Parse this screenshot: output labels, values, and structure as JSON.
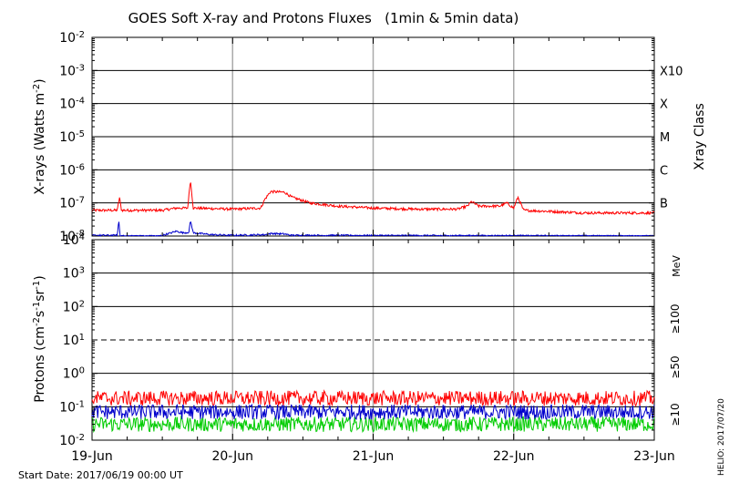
{
  "chart_data": [
    {
      "type": "line",
      "title": "GOES Soft X-ray and Protons Fluxes   (1min & 5min data)",
      "ylabel_main": "X-rays (Watts m",
      "ylabel_sup": "-2",
      "ylabel_close": ")",
      "yscale": "log",
      "ylim": [
        1e-08,
        0.01
      ],
      "y_ticks": [
        {
          "base": "10",
          "exp": "-8"
        },
        {
          "base": "10",
          "exp": "-7"
        },
        {
          "base": "10",
          "exp": "-6"
        },
        {
          "base": "10",
          "exp": "-5"
        },
        {
          "base": "10",
          "exp": "-4"
        },
        {
          "base": "10",
          "exp": "-3"
        },
        {
          "base": "10",
          "exp": "-2"
        }
      ],
      "right_axis_label": "Xray Class",
      "class_labels": [
        {
          "label": "B",
          "value": 1e-07
        },
        {
          "label": "C",
          "value": 1e-06
        },
        {
          "label": "M",
          "value": 1e-05
        },
        {
          "label": "X",
          "value": 0.0001
        },
        {
          "label": "X10",
          "value": 0.001
        }
      ],
      "series": [
        {
          "color": "#ff0000",
          "points": [
            [
              0,
              6e-08
            ],
            [
              0.18,
              6e-08
            ],
            [
              0.195,
              1.5e-07
            ],
            [
              0.21,
              6e-08
            ],
            [
              0.5,
              6e-08
            ],
            [
              0.6,
              7e-08
            ],
            [
              0.68,
              7e-08
            ],
            [
              0.7,
              5e-07
            ],
            [
              0.72,
              7e-08
            ],
            [
              1.0,
              6.5e-08
            ],
            [
              1.2,
              7e-08
            ],
            [
              1.23,
              1.3e-07
            ],
            [
              1.27,
              2.2e-07
            ],
            [
              1.37,
              2.1e-07
            ],
            [
              1.42,
              1.5e-07
            ],
            [
              1.55,
              1e-07
            ],
            [
              1.75,
              8e-08
            ],
            [
              2.0,
              7e-08
            ],
            [
              2.3,
              6.5e-08
            ],
            [
              2.6,
              6.5e-08
            ],
            [
              2.67,
              8e-08
            ],
            [
              2.7,
              1.1e-07
            ],
            [
              2.75,
              8e-08
            ],
            [
              2.9,
              8e-08
            ],
            [
              2.95,
              1e-07
            ],
            [
              3.0,
              7e-08
            ],
            [
              3.03,
              1.5e-07
            ],
            [
              3.07,
              6e-08
            ],
            [
              3.5,
              5e-08
            ],
            [
              4.0,
              5e-08
            ]
          ]
        },
        {
          "color": "#0000cc",
          "points": [
            [
              0,
              1.05e-08
            ],
            [
              0.18,
              1.05e-08
            ],
            [
              0.19,
              3e-08
            ],
            [
              0.2,
              1e-08
            ],
            [
              0.48,
              1e-08
            ],
            [
              0.55,
              1.2e-08
            ],
            [
              0.6,
              1.4e-08
            ],
            [
              0.65,
              1.25e-08
            ],
            [
              0.69,
              1.3e-08
            ],
            [
              0.7,
              3e-08
            ],
            [
              0.72,
              1.25e-08
            ],
            [
              0.85,
              1.1e-08
            ],
            [
              1.0,
              1.05e-08
            ],
            [
              1.23,
              1.1e-08
            ],
            [
              1.28,
              1.2e-08
            ],
            [
              1.37,
              1.15e-08
            ],
            [
              1.42,
              1.05e-08
            ],
            [
              4.0,
              1e-08
            ]
          ]
        }
      ]
    },
    {
      "type": "line",
      "ylabel_main": "Protons (cm",
      "ylabel_sup1": "-2",
      "ylabel_mid": "s",
      "ylabel_sup2": "-1",
      "ylabel_mid2": "sr",
      "ylabel_sup3": "-1",
      "ylabel_close": ")",
      "yscale": "log",
      "ylim": [
        0.01,
        10000
      ],
      "y_ticks": [
        {
          "base": "10",
          "exp": "-2"
        },
        {
          "base": "10",
          "exp": "-1"
        },
        {
          "base": "10",
          "exp": "0"
        },
        {
          "base": "10",
          "exp": "1"
        },
        {
          "base": "10",
          "exp": "2"
        },
        {
          "base": "10",
          "exp": "3"
        },
        {
          "base": "10",
          "exp": "4"
        }
      ],
      "dashed_line_value": 10,
      "unit_label": "MeV",
      "energy_labels": [
        {
          "label": "≥100",
          "color": "#00cc00"
        },
        {
          "label": "≥50",
          "color": "#0000cc"
        },
        {
          "label": "≥10",
          "color": "#ff0000"
        }
      ],
      "series": [
        {
          "name": "≥10",
          "color": "#ff0000",
          "center": 0.18
        },
        {
          "name": "≥50",
          "color": "#0000cc",
          "center": 0.07
        },
        {
          "name": "≥100",
          "color": "#00cc00",
          "center": 0.03
        }
      ],
      "x_ticks": [
        "19-Jun",
        "20-Jun",
        "21-Jun",
        "22-Jun",
        "23-Jun"
      ],
      "x_range_days": [
        0,
        4
      ]
    }
  ],
  "footer": {
    "start_date": "Start Date: 2017/06/19 00:00 UT",
    "credit": "HELIO: 2017/07/20"
  }
}
